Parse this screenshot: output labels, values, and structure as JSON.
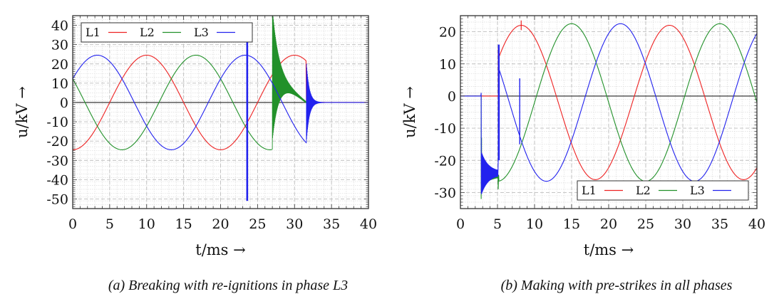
{
  "chart_data": [
    {
      "type": "line",
      "id": "a",
      "title": "",
      "caption": "(a) Breaking with re-ignitions in phase L3",
      "xlabel": "t/ms →",
      "ylabel": "u/kV →",
      "xlim": [
        0,
        40
      ],
      "ylim": [
        -55,
        45
      ],
      "xticks": [
        0,
        5,
        10,
        15,
        20,
        25,
        30,
        35,
        40
      ],
      "yticks": [
        40,
        30,
        20,
        10,
        0,
        -10,
        -20,
        -30,
        -40,
        -50
      ],
      "grid": true,
      "legend": {
        "position": "top-left",
        "entries": [
          "L1",
          "L2",
          "L3"
        ]
      },
      "series": [
        {
          "name": "L1",
          "color": "#ee2222",
          "amplitude": 24.5,
          "period_ms": 20,
          "phase_deg": -90,
          "events": [
            {
              "t": 31.6,
              "type": "interrupt",
              "transient_to": 0
            }
          ]
        },
        {
          "name": "L2",
          "color": "#22912a",
          "amplitude": 24.5,
          "period_ms": 20,
          "phase_deg": 150,
          "events": [
            {
              "t": 27.0,
              "type": "reignition",
              "peak": 44,
              "decay_to_line": true,
              "end": 31.6
            }
          ]
        },
        {
          "name": "L3",
          "color": "#2222ee",
          "amplitude": 24.5,
          "period_ms": 20,
          "phase_deg": 30,
          "events": [
            {
              "t": 23.6,
              "type": "spike",
              "max": 32,
              "min": -51
            },
            {
              "t": 31.6,
              "type": "interrupt",
              "transient_from": -22,
              "transient_to": 21,
              "settle": 0
            }
          ]
        }
      ],
      "annotations": [
        "Zero reference line at 0 kV"
      ]
    },
    {
      "type": "line",
      "id": "b",
      "title": "",
      "caption": "(b)  Making with pre-strikes in all phases",
      "xlabel": "t/ms →",
      "ylabel": "u/kV →",
      "xlim": [
        0,
        40
      ],
      "ylim": [
        -35,
        25
      ],
      "xticks": [
        0,
        5,
        10,
        15,
        20,
        25,
        30,
        35,
        40
      ],
      "yticks": [
        20,
        10,
        0,
        -10,
        -20,
        -30
      ],
      "grid": true,
      "legend": {
        "position": "bottom-right",
        "entries": [
          "L1",
          "L2",
          "L3"
        ]
      },
      "series": [
        {
          "name": "L1",
          "color": "#ee2222",
          "amplitude": 24,
          "offset": -2,
          "period_ms": 20,
          "peak_t": 8.2,
          "events": [
            {
              "t": 5.1,
              "type": "prestrike",
              "max": 16,
              "min": -20
            }
          ]
        },
        {
          "name": "L2",
          "color": "#22912a",
          "amplitude": 24.5,
          "offset": -2,
          "period_ms": 20,
          "peak_t": 15.0,
          "events": [
            {
              "t": 2.8,
              "type": "prestrike",
              "min": -32,
              "hold": -25
            },
            {
              "t": 5.1,
              "type": "step",
              "min": -29
            }
          ]
        },
        {
          "name": "L3",
          "color": "#2222ee",
          "amplitude": 24.5,
          "offset": -2,
          "period_ms": 20,
          "peak_t": 21.6,
          "events": [
            {
              "t": 2.8,
              "type": "prestrike",
              "max": 1,
              "min": -30,
              "hold": -25
            },
            {
              "t": 5.1,
              "type": "prestrike",
              "max": 16
            },
            {
              "t": 8.0,
              "type": "spike",
              "max": 5.5,
              "min": -15
            }
          ]
        }
      ],
      "annotations": [
        "Zero reference line at 0 kV",
        "All phases 0 kV before t ≈ 2.8 ms"
      ]
    }
  ]
}
